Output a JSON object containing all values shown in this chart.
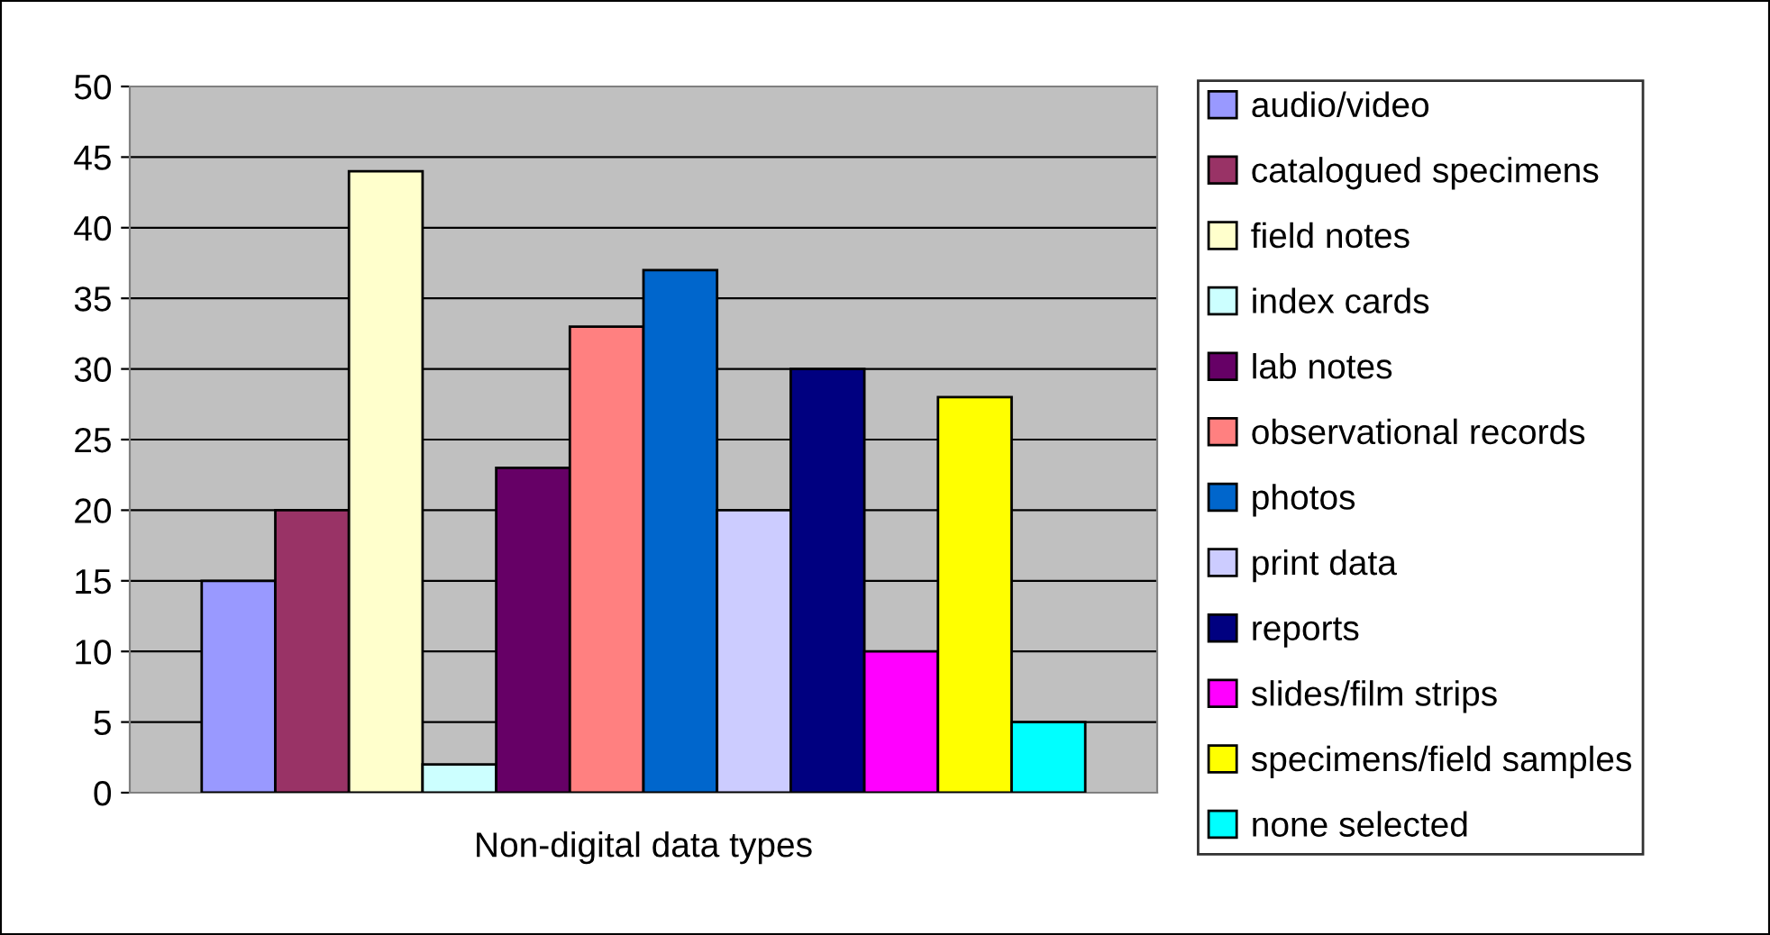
{
  "chart_data": {
    "type": "bar",
    "xlabel": "Non-digital data types",
    "categories": [
      null
    ],
    "ylim": [
      0,
      50
    ],
    "yticks": [
      0,
      5,
      10,
      15,
      20,
      25,
      30,
      35,
      40,
      45,
      50
    ],
    "grid": "y",
    "legend": "right",
    "series": [
      {
        "name": "audio/video",
        "color": "#9999ff",
        "values": [
          15
        ]
      },
      {
        "name": "catalogued specimens",
        "color": "#993366",
        "values": [
          20
        ]
      },
      {
        "name": "field notes",
        "color": "#ffffcc",
        "values": [
          44
        ]
      },
      {
        "name": "index cards",
        "color": "#ccffff",
        "values": [
          2
        ]
      },
      {
        "name": "lab notes",
        "color": "#660066",
        "values": [
          23
        ]
      },
      {
        "name": "observational records",
        "color": "#ff8080",
        "values": [
          33
        ]
      },
      {
        "name": "photos",
        "color": "#0066cc",
        "values": [
          37
        ]
      },
      {
        "name": "print data",
        "color": "#ccccff",
        "values": [
          20
        ]
      },
      {
        "name": "reports",
        "color": "#000080",
        "values": [
          30
        ]
      },
      {
        "name": "slides/film strips",
        "color": "#ff00ff",
        "values": [
          10
        ]
      },
      {
        "name": "specimens/field samples",
        "color": "#ffff00",
        "values": [
          28
        ]
      },
      {
        "name": "none selected",
        "color": "#00ffff",
        "values": [
          5
        ]
      }
    ]
  }
}
